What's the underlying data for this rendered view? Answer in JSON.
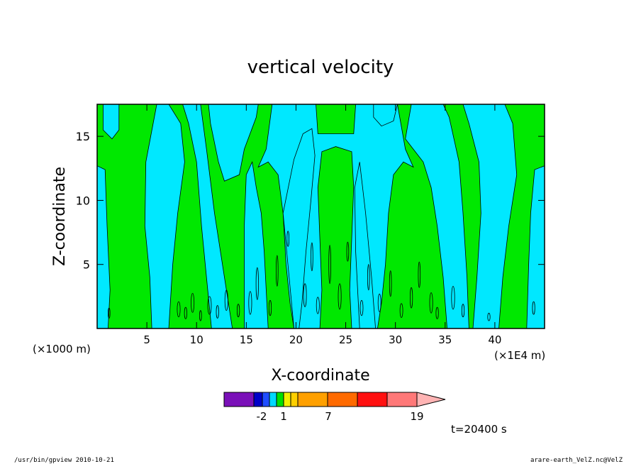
{
  "chart_data": {
    "type": "heatmap",
    "title": "vertical velocity",
    "xlabel": "X-coordinate",
    "ylabel": "Z-coordinate",
    "x_unit_left": "(×1000 m)",
    "x_unit_right": "(×1E4 m)",
    "xlim": [
      0,
      45
    ],
    "ylim": [
      0,
      17.5
    ],
    "x_ticks": [
      5,
      10,
      15,
      20,
      25,
      30,
      35,
      40
    ],
    "y_ticks": [
      5,
      10,
      15
    ],
    "field_colors": {
      "negative": "#00e8ff",
      "positive": "#00e800"
    },
    "colorbar": {
      "colors": [
        "#7a10b8",
        "#0000c8",
        "#1f4dff",
        "#00d8ff",
        "#00e000",
        "#f0f000",
        "#ffd000",
        "#ffa000",
        "#ff6a00",
        "#ff1010",
        "#ff7878",
        "#ffb4b4"
      ],
      "labels": [
        "-2",
        "1",
        "7",
        "19"
      ]
    },
    "time_label": "t=20400 s"
  },
  "footer": {
    "left": "/usr/bin/gpview  2010-10-21",
    "right": "arare-earth_VelZ.nc@VelZ"
  }
}
